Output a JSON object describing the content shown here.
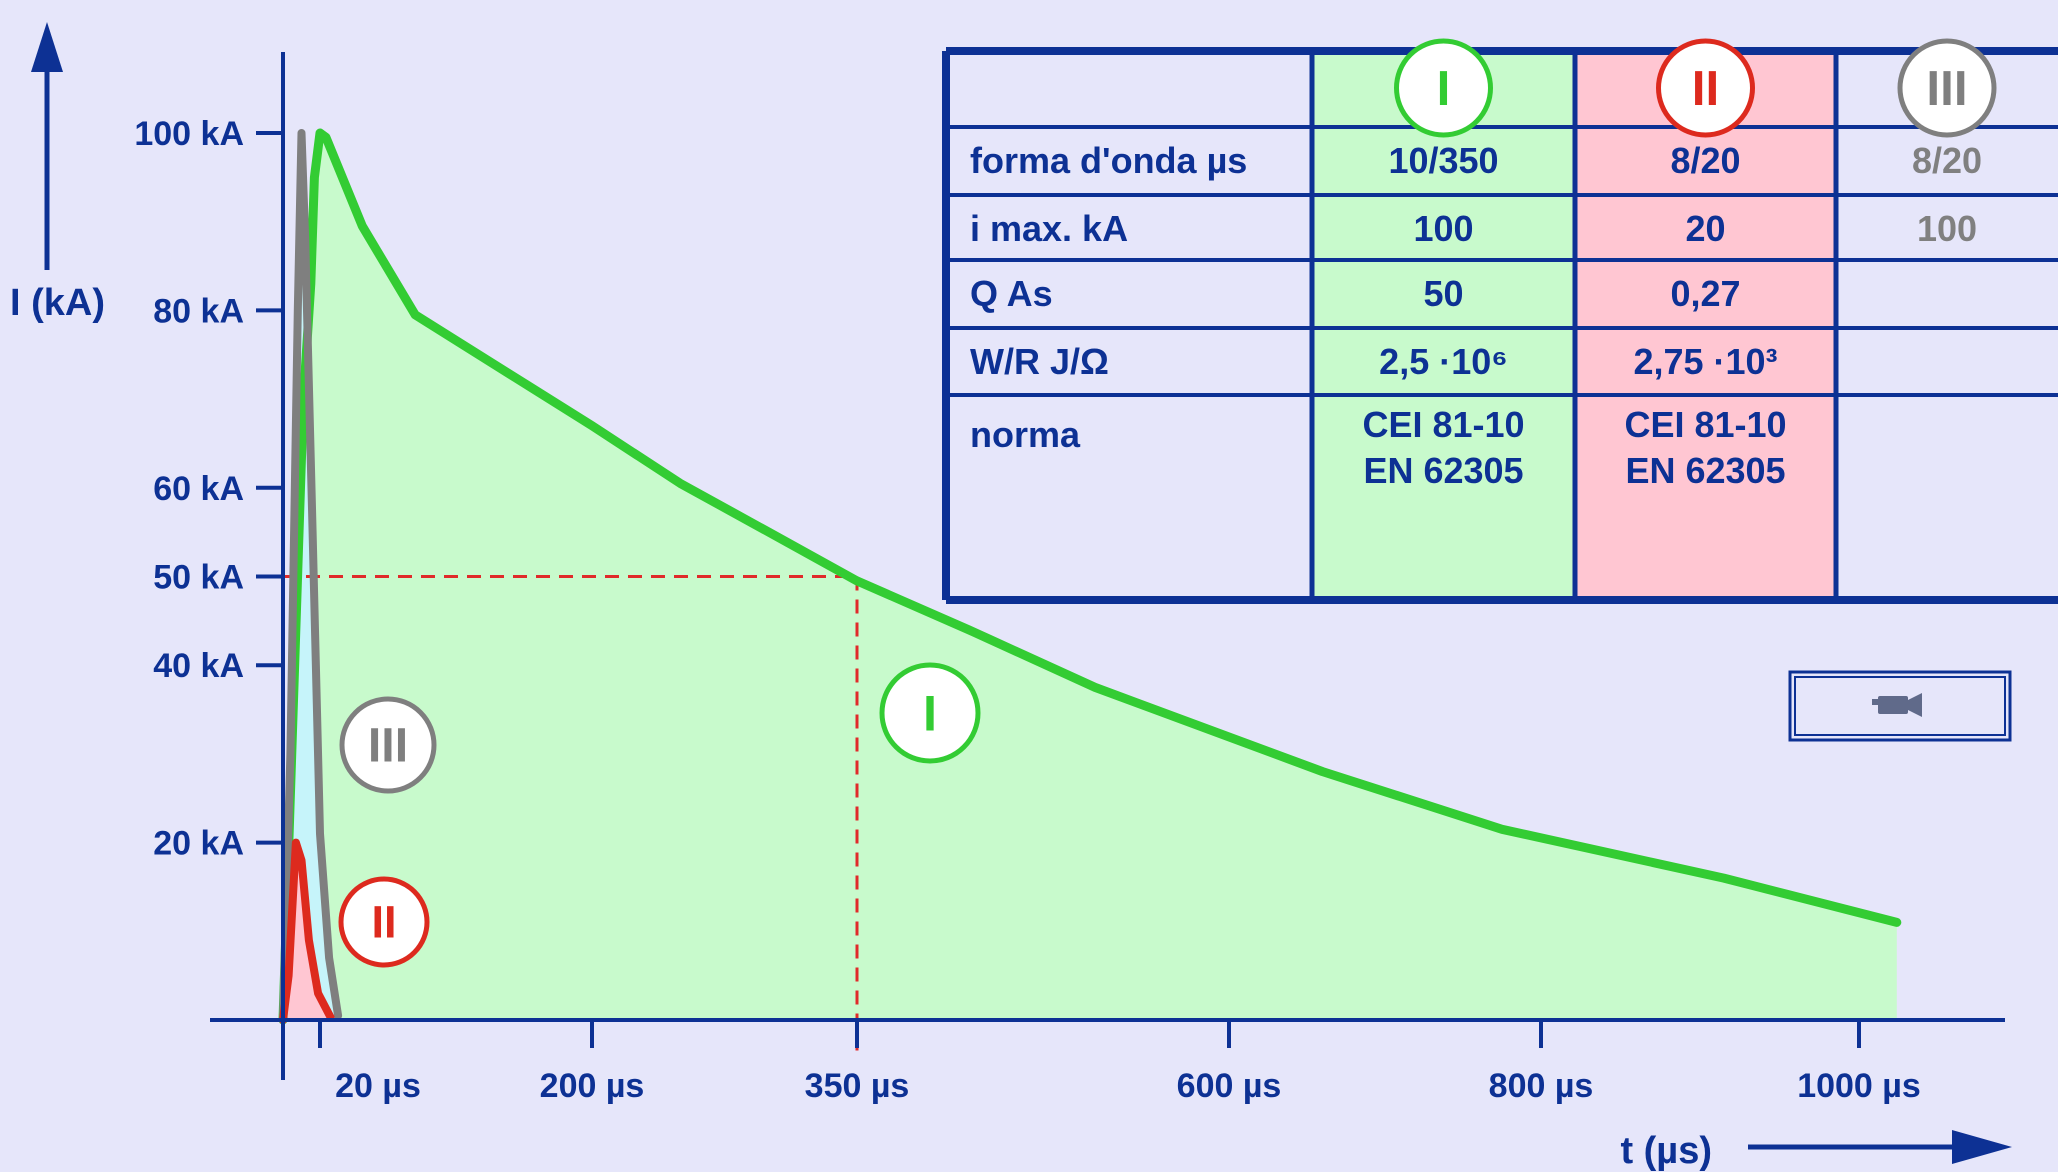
{
  "colors": {
    "background": "#e6e6fa",
    "axis": "#0d3194",
    "label": "#0d3194",
    "tick_text": "#e23a1a",
    "class_I": "#33cc33",
    "class_I_fill": "#c8facc",
    "class_II": "#dd2a1e",
    "class_II_fill": "#ffc6d2",
    "class_III": "#7f7f7f",
    "class_III_fill": "#c6f4fa",
    "ref_line": "#e02a2a",
    "table_border": "#0d3194",
    "table_gray_text": "#808080"
  },
  "chart_data": {
    "type": "line",
    "xlabel": "t (µs)",
    "ylabel": "I (kA)",
    "x_ticks": [
      {
        "label": "20 µs",
        "value": 20
      },
      {
        "label": "200 µs",
        "value": 200
      },
      {
        "label": "350 µs",
        "value": 350
      },
      {
        "label": "600 µs",
        "value": 600
      },
      {
        "label": "800 µs",
        "value": 800
      },
      {
        "label": "1000 µs",
        "value": 1000
      }
    ],
    "y_ticks": [
      {
        "label": "100 kA",
        "value": 100
      },
      {
        "label": "80 kA",
        "value": 80
      },
      {
        "label": "60 kA",
        "value": 60
      },
      {
        "label": "50 kA",
        "value": 50
      },
      {
        "label": "40 kA",
        "value": 40
      },
      {
        "label": "20 kA",
        "value": 20
      }
    ],
    "ylim": [
      0,
      100
    ],
    "reference": {
      "x": 350,
      "y": 50
    },
    "series": [
      {
        "name": "I",
        "x": [
          0,
          11,
          15,
          17,
          20,
          24,
          48,
          83,
          200,
          250,
          300,
          350,
          425,
          510,
          660,
          775,
          915,
          1025
        ],
        "y": [
          0,
          70,
          83,
          95,
          100,
          99.5,
          89.5,
          79.5,
          67,
          60.5,
          55,
          49.5,
          44,
          37.5,
          28,
          21.5,
          16,
          11
        ]
      },
      {
        "name": "II",
        "x": [
          0,
          3,
          7,
          10,
          14,
          19,
          27
        ],
        "y": [
          0,
          5,
          20,
          18,
          9,
          3,
          0.3
        ]
      },
      {
        "name": "III",
        "x": [
          0,
          4,
          8,
          10,
          12,
          16,
          20,
          26,
          32
        ],
        "y": [
          0,
          30,
          80,
          100,
          88,
          55,
          21,
          7,
          0.5
        ]
      }
    ]
  },
  "table": {
    "class_marks": [
      "I",
      "II",
      "III"
    ],
    "rows": [
      {
        "label": "forma d'onda µs",
        "values": [
          "10/350",
          "8/20",
          "8/20"
        ]
      },
      {
        "label": "i max. kA",
        "values": [
          "100",
          "20",
          "100"
        ]
      },
      {
        "label": "Q As",
        "values": [
          "50",
          "0,27",
          ""
        ]
      },
      {
        "label": "W/R J/Ω",
        "values": [
          "2,5 ·10⁶",
          "2,75 ·10³",
          ""
        ]
      },
      {
        "label": "norma",
        "values": [
          [
            "CEI 81-10",
            "EN 62305"
          ],
          [
            "CEI 81-10",
            "EN 62305"
          ],
          [
            "",
            ""
          ]
        ]
      }
    ]
  },
  "icons": {
    "movie_button": "video-camera-icon"
  }
}
